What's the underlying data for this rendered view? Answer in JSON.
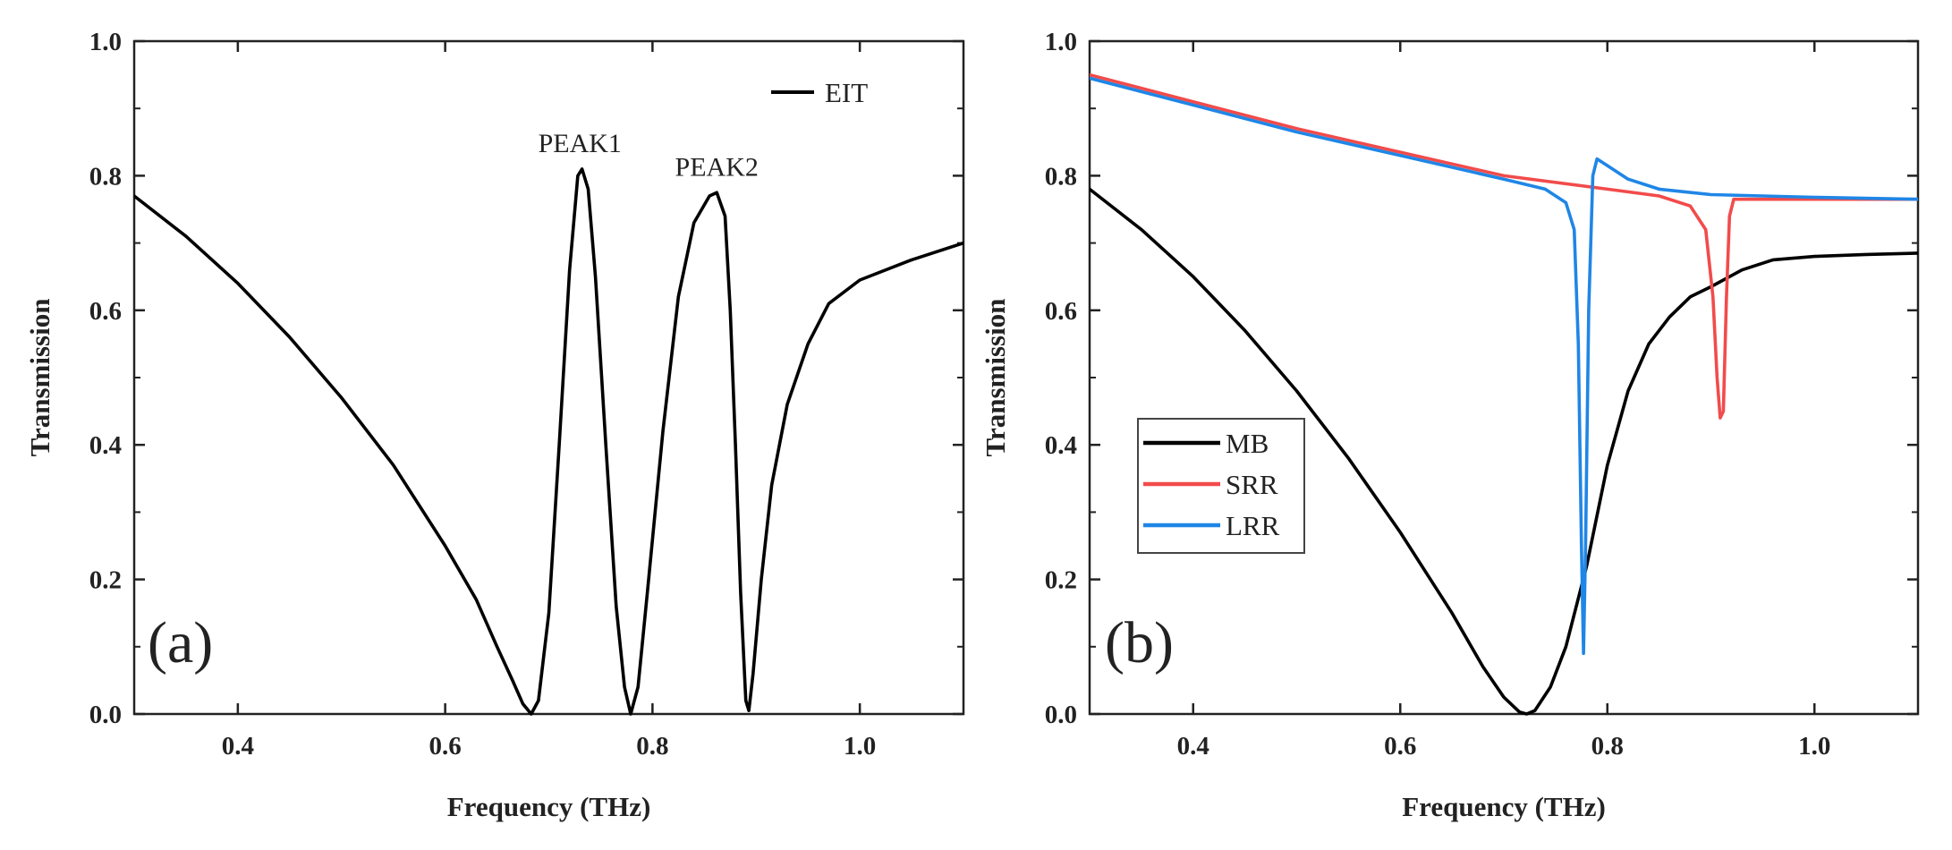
{
  "chart_data": [
    {
      "id": "a",
      "type": "line",
      "panel_label": "(a)",
      "xlabel": "Frequency (THz)",
      "ylabel": "Transmission",
      "xlim": [
        0.3,
        1.1
      ],
      "ylim": [
        0.0,
        1.0
      ],
      "xticks": [
        "0.4",
        "0.6",
        "0.8",
        "1.0"
      ],
      "yticks": [
        "0.0",
        "0.2",
        "0.4",
        "0.6",
        "0.8",
        "1.0"
      ],
      "legend_position": "top-right",
      "series": [
        {
          "name": "EIT",
          "color": "#000000",
          "points": [
            [
              0.3,
              0.77
            ],
            [
              0.35,
              0.71
            ],
            [
              0.4,
              0.64
            ],
            [
              0.45,
              0.56
            ],
            [
              0.5,
              0.47
            ],
            [
              0.55,
              0.37
            ],
            [
              0.6,
              0.25
            ],
            [
              0.63,
              0.17
            ],
            [
              0.65,
              0.1
            ],
            [
              0.665,
              0.05
            ],
            [
              0.675,
              0.015
            ],
            [
              0.683,
              0.0
            ],
            [
              0.69,
              0.02
            ],
            [
              0.7,
              0.15
            ],
            [
              0.71,
              0.4
            ],
            [
              0.72,
              0.66
            ],
            [
              0.728,
              0.8
            ],
            [
              0.732,
              0.81
            ],
            [
              0.738,
              0.78
            ],
            [
              0.745,
              0.65
            ],
            [
              0.755,
              0.4
            ],
            [
              0.765,
              0.16
            ],
            [
              0.773,
              0.04
            ],
            [
              0.779,
              0.0
            ],
            [
              0.786,
              0.04
            ],
            [
              0.795,
              0.18
            ],
            [
              0.81,
              0.42
            ],
            [
              0.825,
              0.62
            ],
            [
              0.84,
              0.73
            ],
            [
              0.855,
              0.77
            ],
            [
              0.862,
              0.775
            ],
            [
              0.87,
              0.74
            ],
            [
              0.875,
              0.6
            ],
            [
              0.88,
              0.4
            ],
            [
              0.885,
              0.18
            ],
            [
              0.89,
              0.02
            ],
            [
              0.893,
              0.005
            ],
            [
              0.897,
              0.06
            ],
            [
              0.905,
              0.2
            ],
            [
              0.915,
              0.34
            ],
            [
              0.93,
              0.46
            ],
            [
              0.95,
              0.55
            ],
            [
              0.97,
              0.61
            ],
            [
              1.0,
              0.645
            ],
            [
              1.05,
              0.675
            ],
            [
              1.1,
              0.7
            ]
          ]
        }
      ],
      "annotations": [
        {
          "text": "PEAK1",
          "x": 0.73,
          "y": 0.835
        },
        {
          "text": "PEAK2",
          "x": 0.862,
          "y": 0.8
        }
      ]
    },
    {
      "id": "b",
      "type": "line",
      "panel_label": "(b)",
      "xlabel": "Frequency (THz)",
      "ylabel": "Transmission",
      "xlim": [
        0.3,
        1.1
      ],
      "ylim": [
        0.0,
        1.0
      ],
      "xticks": [
        "0.4",
        "0.6",
        "0.8",
        "1.0"
      ],
      "yticks": [
        "0.0",
        "0.2",
        "0.4",
        "0.6",
        "0.8",
        "1.0"
      ],
      "legend_position": "center-left",
      "series": [
        {
          "name": "MB",
          "color": "#000000",
          "points": [
            [
              0.3,
              0.78
            ],
            [
              0.35,
              0.72
            ],
            [
              0.4,
              0.65
            ],
            [
              0.45,
              0.57
            ],
            [
              0.5,
              0.48
            ],
            [
              0.55,
              0.38
            ],
            [
              0.6,
              0.27
            ],
            [
              0.65,
              0.15
            ],
            [
              0.68,
              0.07
            ],
            [
              0.7,
              0.025
            ],
            [
              0.715,
              0.003
            ],
            [
              0.722,
              0.0
            ],
            [
              0.73,
              0.005
            ],
            [
              0.745,
              0.04
            ],
            [
              0.76,
              0.1
            ],
            [
              0.78,
              0.22
            ],
            [
              0.8,
              0.37
            ],
            [
              0.82,
              0.48
            ],
            [
              0.84,
              0.55
            ],
            [
              0.86,
              0.59
            ],
            [
              0.88,
              0.62
            ],
            [
              0.9,
              0.635
            ],
            [
              0.93,
              0.66
            ],
            [
              0.96,
              0.675
            ],
            [
              1.0,
              0.68
            ],
            [
              1.05,
              0.683
            ],
            [
              1.1,
              0.685
            ]
          ]
        },
        {
          "name": "SRR",
          "color": "#f24b4b",
          "points": [
            [
              0.3,
              0.95
            ],
            [
              0.4,
              0.91
            ],
            [
              0.5,
              0.87
            ],
            [
              0.6,
              0.835
            ],
            [
              0.7,
              0.8
            ],
            [
              0.8,
              0.78
            ],
            [
              0.85,
              0.77
            ],
            [
              0.88,
              0.755
            ],
            [
              0.895,
              0.72
            ],
            [
              0.902,
              0.62
            ],
            [
              0.906,
              0.5
            ],
            [
              0.909,
              0.44
            ],
            [
              0.912,
              0.45
            ],
            [
              0.915,
              0.62
            ],
            [
              0.918,
              0.74
            ],
            [
              0.922,
              0.765
            ],
            [
              0.95,
              0.765
            ],
            [
              1.0,
              0.765
            ],
            [
              1.1,
              0.765
            ]
          ]
        },
        {
          "name": "LRR",
          "color": "#1f86e6",
          "points": [
            [
              0.3,
              0.945
            ],
            [
              0.4,
              0.905
            ],
            [
              0.5,
              0.865
            ],
            [
              0.6,
              0.83
            ],
            [
              0.7,
              0.795
            ],
            [
              0.74,
              0.78
            ],
            [
              0.76,
              0.76
            ],
            [
              0.768,
              0.72
            ],
            [
              0.772,
              0.55
            ],
            [
              0.775,
              0.25
            ],
            [
              0.777,
              0.09
            ],
            [
              0.779,
              0.25
            ],
            [
              0.782,
              0.6
            ],
            [
              0.786,
              0.8
            ],
            [
              0.79,
              0.825
            ],
            [
              0.8,
              0.815
            ],
            [
              0.82,
              0.795
            ],
            [
              0.85,
              0.78
            ],
            [
              0.9,
              0.772
            ],
            [
              1.0,
              0.768
            ],
            [
              1.1,
              0.765
            ]
          ]
        }
      ],
      "annotations": []
    }
  ]
}
